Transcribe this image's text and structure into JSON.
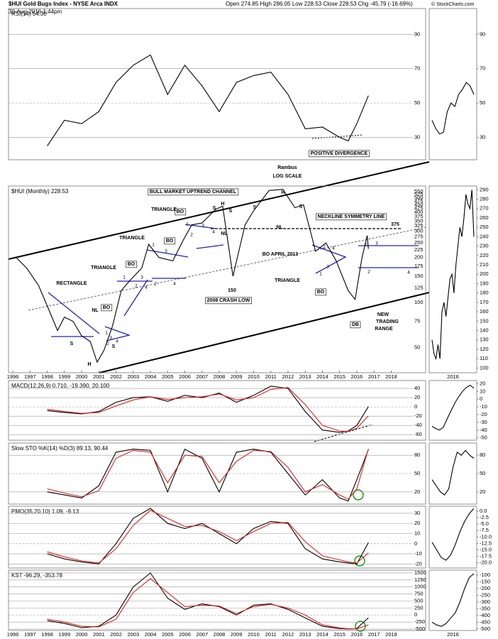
{
  "header": {
    "symbol": "$HUI Gold Bugs Index - NYSE Arca INDX",
    "date": "30-Aug-2016 1:44pm",
    "quote": "Open 274.85 High 286.05 Low 228.53 Close 228.53 Chg -45.79 (-16.69%)",
    "credit": "© StockCharts.com"
  },
  "chart_data": [
    {
      "type": "line",
      "title": "RSI(14) 54.30",
      "ylim": [
        17,
        105
      ],
      "yticks": [
        30,
        50,
        70,
        90
      ],
      "grid": true,
      "xlim": [
        1995.75,
        2020
      ],
      "x": [
        1998,
        1999,
        2000,
        2001,
        2002,
        2003,
        2004,
        2005,
        2006,
        2007,
        2008,
        2009,
        2010,
        2011,
        2012,
        2013,
        2014,
        2015,
        2015.5,
        2016,
        2016.67
      ],
      "series": [
        {
          "name": "RSI",
          "color": "#000000",
          "values": [
            25,
            40,
            38,
            45,
            62,
            72,
            78,
            55,
            72,
            60,
            45,
            62,
            66,
            68,
            55,
            35,
            36,
            30,
            28,
            38,
            54.3
          ]
        }
      ],
      "annotations": [
        "POSITIVE DIVERGENCE"
      ],
      "inset": {
        "ylim": [
          17,
          105
        ],
        "yticks": [
          30,
          50,
          70,
          90
        ],
        "values": [
          40,
          35,
          32,
          33,
          45,
          50,
          48,
          55,
          58,
          62,
          60,
          55
        ]
      }
    },
    {
      "type": "line",
      "title": "$HUI (Monthly) 228.53",
      "log": true,
      "ylim": [
        34,
        600
      ],
      "xlim": [
        1995.75,
        2020
      ],
      "yticks": [
        550,
        525,
        500,
        475,
        450,
        425,
        400,
        375,
        350,
        325,
        300,
        275,
        250,
        225,
        200,
        175,
        150,
        125,
        100,
        75,
        50
      ],
      "xticks": [
        1996,
        1997,
        1998,
        1999,
        2000,
        2001,
        2002,
        2003,
        2004,
        2005,
        2006,
        2007,
        2008,
        2009,
        2010,
        2011,
        2012,
        2013,
        2014,
        2015,
        2016,
        2017,
        2018
      ],
      "inset_label": "2016",
      "x": [
        1996.2,
        1996.8,
        1997.5,
        1998,
        1998.6,
        1999,
        1999.5,
        2000,
        2000.5,
        2000.9,
        2001.3,
        2001.8,
        2002.3,
        2002.8,
        2003.5,
        2003.9,
        2004.5,
        2005.3,
        2005.9,
        2006.4,
        2007,
        2007.8,
        2008.2,
        2008.8,
        2009.5,
        2010,
        2010.9,
        2011.7,
        2012.4,
        2012.9,
        2013.3,
        2013.6,
        2014.2,
        2014.8,
        2015.5,
        2015.9,
        2016.3,
        2016.6,
        2016.67
      ],
      "series": [
        {
          "name": "$HUI",
          "color": "#000000",
          "values": [
            200,
            170,
            130,
            95,
            65,
            80,
            75,
            60,
            55,
            40,
            48,
            70,
            120,
            140,
            170,
            245,
            200,
            190,
            260,
            330,
            340,
            420,
            440,
            150,
            330,
            410,
            560,
            570,
            430,
            450,
            300,
            220,
            250,
            190,
            120,
            105,
            200,
            280,
            228.53
          ]
        }
      ],
      "annotations": [
        "Rambus",
        "LOG SCALE",
        "BULL MARKET UPTREND CHANNEL",
        "TRIANGLE",
        "TRIANGLE",
        "TRIANGLE",
        "RECTANGLE",
        "TRIANGLE",
        "BO",
        "BO",
        "BO",
        "BO",
        "BO",
        "BO APRIL 2013",
        "NL",
        "NL",
        "NL",
        "H",
        "H",
        "H",
        "S",
        "S",
        "S",
        "S",
        "S",
        "S",
        "150",
        "2008 CRASH LOW",
        "NECKLINE SYMMETRY LINE",
        "375",
        "DB",
        "NEW",
        "TRADING",
        "RANGE",
        "1",
        "2",
        "3",
        "4",
        "1",
        "2",
        "3",
        "4",
        "1",
        "2",
        "3",
        "4",
        "1",
        "2",
        "3",
        "4",
        "1",
        "2",
        "3",
        "4",
        "1",
        "2",
        "3",
        "4"
      ],
      "inset": {
        "ylim": [
          95,
          294
        ],
        "yticks": [
          290,
          280,
          270,
          260,
          250,
          240,
          230,
          220,
          210,
          200,
          190,
          180,
          170,
          160,
          150,
          140,
          130,
          120,
          110,
          100
        ],
        "values": [
          130,
          115,
          110,
          125,
          110,
          160,
          170,
          155,
          175,
          195,
          200,
          180,
          210,
          230,
          250,
          240,
          260,
          285,
          275,
          270,
          290,
          240
        ]
      }
    },
    {
      "type": "line",
      "title": "MACD(12,26,9) 0.710, -19.390, 20.100",
      "ylim": [
        -72,
        57
      ],
      "yticks": [
        40,
        20,
        0,
        -20,
        -40,
        -60
      ],
      "grid": true,
      "xlim": [
        1995.75,
        2020
      ],
      "x": [
        1998,
        1999,
        2000,
        2001,
        2002,
        2003,
        2004,
        2005,
        2006,
        2007,
        2008,
        2009,
        2010,
        2011,
        2012,
        2013,
        2014,
        2015,
        2015.5,
        2016,
        2016.67
      ],
      "series": [
        {
          "name": "MACD",
          "color": "#000000",
          "values": [
            -8,
            -12,
            -15,
            -10,
            10,
            20,
            22,
            12,
            25,
            20,
            30,
            10,
            25,
            45,
            40,
            -10,
            -50,
            -55,
            -52,
            -40,
            0.71
          ]
        },
        {
          "name": "Signal",
          "color": "#e02020",
          "values": [
            -5,
            -10,
            -14,
            -12,
            2,
            15,
            22,
            16,
            20,
            22,
            28,
            15,
            20,
            38,
            42,
            5,
            -40,
            -52,
            -53,
            -46,
            -19.39
          ]
        }
      ],
      "inset": {
        "ylim": [
          -53,
          24
        ],
        "yticks": [
          20,
          10,
          0,
          -10,
          -20,
          -30,
          -40,
          -50
        ],
        "values": [
          -35,
          -38,
          -40,
          -36,
          -25,
          -15,
          -5,
          3,
          10,
          15,
          18,
          14
        ]
      }
    },
    {
      "type": "line",
      "title": "Slow STO %K(14) %D(3) 89.13, 90.44",
      "ylim": [
        0,
        100
      ],
      "yticks": [
        80,
        50,
        20
      ],
      "grid": true,
      "xlim": [
        1995.75,
        2020
      ],
      "x": [
        1998,
        1999,
        2000,
        2001,
        2002,
        2003,
        2004,
        2005,
        2006,
        2007,
        2008,
        2009,
        2010,
        2011,
        2012,
        2013,
        2014,
        2015,
        2015.5,
        2016,
        2016.67
      ],
      "series": [
        {
          "name": "%K",
          "color": "#000000",
          "values": [
            20,
            15,
            10,
            30,
            85,
            90,
            88,
            20,
            90,
            75,
            20,
            85,
            90,
            85,
            50,
            15,
            40,
            10,
            5,
            40,
            89.13
          ]
        },
        {
          "name": "%D",
          "color": "#e02020",
          "values": [
            25,
            18,
            12,
            22,
            75,
            88,
            85,
            35,
            80,
            78,
            35,
            70,
            88,
            86,
            60,
            20,
            32,
            15,
            8,
            25,
            90.44
          ]
        }
      ],
      "inset": {
        "ylim": [
          0,
          100
        ],
        "yticks": [
          80,
          50,
          20
        ],
        "values": [
          40,
          30,
          20,
          15,
          25,
          60,
          85,
          80,
          88,
          80,
          75
        ]
      }
    },
    {
      "type": "line",
      "title": "PMO(35,20,10) 1.09, -9.13",
      "ylim": [
        -24,
        37
      ],
      "yticks": [
        30,
        20,
        10,
        0,
        -10,
        -20
      ],
      "grid": true,
      "xlim": [
        1995.75,
        2020
      ],
      "x": [
        1998,
        1999,
        2000,
        2001,
        2002,
        2003,
        2004,
        2005,
        2006,
        2007,
        2008,
        2009,
        2010,
        2011,
        2012,
        2013,
        2014,
        2015,
        2015.5,
        2016,
        2016.67
      ],
      "series": [
        {
          "name": "PMO",
          "color": "#000000",
          "values": [
            -10,
            -15,
            -18,
            -20,
            0,
            25,
            35,
            20,
            15,
            20,
            10,
            0,
            15,
            22,
            20,
            -5,
            -15,
            -18,
            -19,
            -20,
            1.09
          ]
        },
        {
          "name": "Signal",
          "color": "#e02020",
          "values": [
            -8,
            -13,
            -17,
            -19,
            -5,
            18,
            33,
            25,
            17,
            18,
            12,
            3,
            12,
            20,
            21,
            2,
            -12,
            -16,
            -18,
            -19,
            -9.13
          ]
        }
      ],
      "inset": {
        "ylim": [
          -22,
          1.9
        ],
        "yticks": [
          {
            "value": 0,
            "label": "0.0"
          },
          -2.5,
          {
            "value": -5,
            "label": "-5.0"
          },
          -7.5,
          {
            "value": -10,
            "label": "-10.0"
          },
          -12.5,
          {
            "value": -15,
            "label": "-15.0"
          },
          -17.5,
          {
            "value": -20,
            "label": "-20.0"
          }
        ],
        "values": [
          -12,
          -15,
          -18,
          -19,
          -17,
          -13,
          -8,
          -4,
          -1,
          1
        ]
      }
    },
    {
      "type": "line",
      "title": "KST -96.29, -353.78",
      "ylim": [
        -550,
        1600
      ],
      "yticks": [
        1500,
        1250,
        1000,
        750,
        500,
        250,
        0,
        -250,
        -500
      ],
      "grid": true,
      "xlim": [
        1995.75,
        2020
      ],
      "x": [
        1998,
        1999,
        2000,
        2001,
        2002,
        2003,
        2004,
        2005,
        2006,
        2007,
        2008,
        2009,
        2010,
        2011,
        2012,
        2013,
        2014,
        2015,
        2015.5,
        2016,
        2016.67
      ],
      "series": [
        {
          "name": "KST",
          "color": "#000000",
          "values": [
            -200,
            -300,
            -450,
            -400,
            0,
            1000,
            1500,
            600,
            200,
            400,
            300,
            0,
            350,
            400,
            200,
            -100,
            -400,
            -480,
            -500,
            -480,
            -96.29
          ]
        },
        {
          "name": "Signal",
          "color": "#e02020",
          "values": [
            -150,
            -250,
            -400,
            -420,
            -150,
            800,
            1300,
            800,
            300,
            350,
            320,
            50,
            300,
            380,
            250,
            0,
            -350,
            -460,
            -490,
            -490,
            -353.78
          ]
        }
      ],
      "inset": {
        "ylim": [
          -511,
          -64
        ],
        "yticks": [
          -100,
          -150,
          -200,
          -250,
          -300,
          -350,
          -400,
          -450,
          -500
        ],
        "values": [
          -450,
          -470,
          -480,
          -460,
          -420,
          -380,
          -300,
          -200,
          -120,
          -90
        ]
      }
    }
  ]
}
